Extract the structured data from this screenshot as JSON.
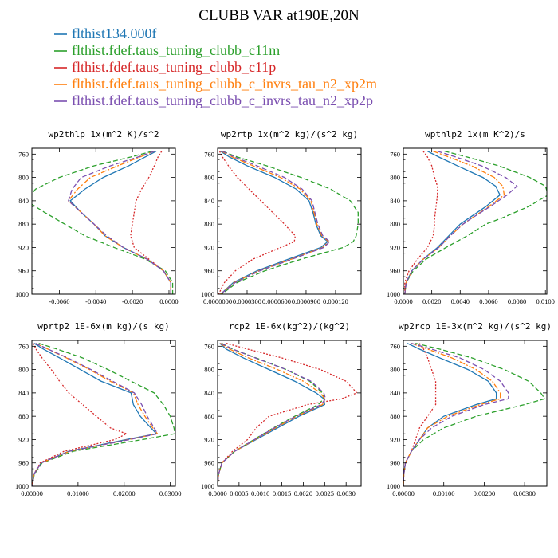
{
  "figure_title": "CLUBB VAR at190E,20N",
  "colors": {
    "ctrl": "#1f77b4",
    "c11m": "#2ca02c",
    "c11p": "#d62728",
    "xp2m": "#ff7f0e",
    "xp2p": "#7b4fb0"
  },
  "chart_data": [
    {
      "type": "line",
      "title": "wp2thlp  1x(m^2 K)/s^2",
      "xlim": [
        -0.0075,
        0.00035
      ],
      "ylim": [
        1000,
        750
      ],
      "xticks": [
        -0.006,
        -0.004,
        -0.002,
        0.0
      ],
      "xtick_labels": [
        "-0.0060",
        "-0.0040",
        "-0.0020",
        "0.0000"
      ],
      "yticks": [
        760,
        800,
        840,
        880,
        920,
        960,
        1000
      ],
      "y": [
        755,
        765,
        780,
        800,
        820,
        840,
        860,
        880,
        900,
        920,
        940,
        960,
        980,
        1000
      ],
      "series": [
        {
          "name": "flthist134.000f",
          "values": [
            -0.0007,
            -0.0013,
            -0.0022,
            -0.0036,
            -0.0046,
            -0.0054,
            -0.0048,
            -0.0041,
            -0.0035,
            -0.0025,
            -0.0012,
            -0.0003,
            0.0001,
            0.0001
          ]
        },
        {
          "name": "flthist.fdef.taus_tuning_clubb_c11m",
          "values": [
            -0.0009,
            -0.0021,
            -0.0041,
            -0.006,
            -0.0073,
            -0.0078,
            -0.0068,
            -0.0057,
            -0.0046,
            -0.003,
            -0.0013,
            -0.0002,
            0.0002,
            0.0002
          ]
        },
        {
          "name": "flthist.fdef.taus_tuning_clubb_c11p",
          "values": [
            -0.0004,
            -0.0006,
            -0.0008,
            -0.0011,
            -0.0015,
            -0.0018,
            -0.0019,
            -0.002,
            -0.0021,
            -0.0019,
            -0.0011,
            -0.0003,
            0.0001,
            0.0001
          ]
        },
        {
          "name": "flthist.fdef.taus_tuning_clubb_c_invrs_tau_n2_xp2m",
          "values": [
            -0.0008,
            -0.0016,
            -0.0028,
            -0.0043,
            -0.005,
            -0.0055,
            -0.0048,
            -0.0041,
            -0.0035,
            -0.0025,
            -0.0012,
            -0.0003,
            0.0001,
            0.0001
          ]
        },
        {
          "name": "flthist.fdef.taus_tuning_clubb_c_invrs_tau_n2_xp2p",
          "values": [
            -0.0008,
            -0.0017,
            -0.0032,
            -0.0048,
            -0.0053,
            -0.0055,
            -0.0048,
            -0.0041,
            -0.0034,
            -0.0025,
            -0.0012,
            -0.0003,
            0.0001,
            0.0001
          ]
        }
      ]
    },
    {
      "type": "line",
      "title": "wp2rtp  1x(m^2 kg)/(s^2 kg)",
      "xlim": [
        0.0,
        0.000146
      ],
      "ylim": [
        1000,
        750
      ],
      "xticks": [
        0.0,
        3e-05,
        6e-05,
        9e-05,
        0.00012
      ],
      "xtick_labels": [
        "0.0000000",
        "0.0000300",
        "0.0000600",
        "0.0000900",
        "0.000120"
      ],
      "yticks": [
        760,
        800,
        840,
        880,
        920,
        960,
        1000
      ],
      "y": [
        755,
        765,
        780,
        800,
        820,
        840,
        860,
        880,
        900,
        910,
        920,
        940,
        960,
        980,
        1000
      ],
      "series": [
        {
          "name": "flthist134.000f",
          "values": [
            3e-06,
            1.2e-05,
            3e-05,
            5.8e-05,
            8e-05,
            9.3e-05,
            9.7e-05,
            0.0001,
            0.000105,
            0.000112,
            0.000105,
            7.2e-05,
            4e-05,
            1.6e-05,
            3e-06
          ]
        },
        {
          "name": "flthist.fdef.taus_tuning_clubb_c11m",
          "values": [
            5e-06,
            2e-05,
            5e-05,
            8.5e-05,
            0.000115,
            0.000135,
            0.000143,
            0.000143,
            0.000141,
            0.000138,
            0.000128,
            8.5e-05,
            4.8e-05,
            2e-05,
            4e-06
          ]
        },
        {
          "name": "flthist.fdef.taus_tuning_clubb_c11p",
          "values": [
            2e-06,
            5e-06,
            1.1e-05,
            2e-05,
            3.2e-05,
            4.4e-05,
            5.6e-05,
            6.8e-05,
            7.9e-05,
            7.8e-05,
            6.4e-05,
            3.6e-05,
            1.8e-05,
            7e-06,
            1e-06
          ]
        },
        {
          "name": "flthist.fdef.taus_tuning_clubb_c_invrs_tau_n2_xp2m",
          "values": [
            4e-06,
            1.5e-05,
            3.6e-05,
            6.4e-05,
            8.4e-05,
            9.5e-05,
            9.8e-05,
            0.000101,
            0.000106,
            0.000113,
            0.000107,
            7.5e-05,
            4.2e-05,
            1.7e-05,
            3e-06
          ]
        },
        {
          "name": "flthist.fdef.taus_tuning_clubb_c_invrs_tau_n2_xp2p",
          "values": [
            5e-06,
            1.7e-05,
            4e-05,
            6.8e-05,
            8.6e-05,
            9.6e-05,
            9.9e-05,
            0.000102,
            0.000107,
            0.000114,
            0.000108,
            7.6e-05,
            4.3e-05,
            1.8e-05,
            3e-06
          ]
        }
      ]
    },
    {
      "type": "line",
      "title": "wpthlp2  1x(m K^2)/s",
      "xlim": [
        0.0,
        0.0101
      ],
      "ylim": [
        1000,
        750
      ],
      "xticks": [
        0.0,
        0.002,
        0.004,
        0.006,
        0.008,
        0.01
      ],
      "xtick_labels": [
        "0.0000",
        "0.0020",
        "0.0040",
        "0.0060",
        "0.0080",
        "0.0100"
      ],
      "yticks": [
        760,
        800,
        840,
        880,
        920,
        960,
        1000
      ],
      "y": [
        755,
        765,
        780,
        800,
        815,
        830,
        850,
        870,
        880,
        900,
        920,
        940,
        960,
        980,
        1000
      ],
      "series": [
        {
          "name": "flthist134.000f",
          "values": [
            0.0017,
            0.0025,
            0.0038,
            0.0056,
            0.0065,
            0.0068,
            0.0058,
            0.0046,
            0.004,
            0.0032,
            0.0024,
            0.0014,
            0.0006,
            0.0002,
            0.0001
          ]
        },
        {
          "name": "flthist.fdef.taus_tuning_clubb_c11m",
          "values": [
            0.0029,
            0.0045,
            0.0067,
            0.0089,
            0.01,
            0.0102,
            0.0088,
            0.0069,
            0.0058,
            0.0045,
            0.003,
            0.0016,
            0.0007,
            0.0002,
            0.0001
          ]
        },
        {
          "name": "flthist.fdef.taus_tuning_clubb_c11p",
          "values": [
            0.0014,
            0.0017,
            0.002,
            0.0022,
            0.0024,
            0.0024,
            0.0023,
            0.0022,
            0.0022,
            0.0021,
            0.0017,
            0.001,
            0.0004,
            0.0001,
            0.0001
          ]
        },
        {
          "name": "flthist.fdef.taus_tuning_clubb_c_invrs_tau_n2_xp2m",
          "values": [
            0.0021,
            0.0032,
            0.0048,
            0.0064,
            0.007,
            0.0071,
            0.006,
            0.0048,
            0.0042,
            0.0033,
            0.0025,
            0.0014,
            0.0006,
            0.0002,
            0.0001
          ]
        },
        {
          "name": "flthist.fdef.taus_tuning_clubb_c_invrs_tau_n2_xp2p",
          "values": [
            0.0024,
            0.0037,
            0.0055,
            0.0072,
            0.008,
            0.0073,
            0.0061,
            0.0048,
            0.0042,
            0.0033,
            0.0025,
            0.0014,
            0.0006,
            0.0002,
            0.0001
          ]
        }
      ]
    },
    {
      "type": "line",
      "title": "wprtp2  1E-6x(m kg)/(s kg)",
      "xlim": [
        0.0,
        0.0311
      ],
      "ylim": [
        1000,
        750
      ],
      "xticks": [
        0.0,
        0.01,
        0.02,
        0.03
      ],
      "xtick_labels": [
        "0.00000",
        "0.01000",
        "0.02000",
        "0.03000"
      ],
      "yticks": [
        760,
        800,
        840,
        880,
        920,
        960,
        1000
      ],
      "y": [
        755,
        765,
        780,
        800,
        820,
        840,
        860,
        880,
        900,
        910,
        920,
        940,
        960,
        980,
        1000
      ],
      "series": [
        {
          "name": "flthist134.000f",
          "values": [
            0.0005,
            0.0025,
            0.006,
            0.0105,
            0.015,
            0.0215,
            0.022,
            0.0235,
            0.0258,
            0.027,
            0.0205,
            0.008,
            0.002,
            0.0004,
            0.0001
          ]
        },
        {
          "name": "flthist.fdef.taus_tuning_clubb_c11m",
          "values": [
            0.0015,
            0.0055,
            0.011,
            0.0165,
            0.0215,
            0.0265,
            0.0285,
            0.03,
            0.0308,
            0.031,
            0.024,
            0.009,
            0.0022,
            0.0005,
            0.0001
          ]
        },
        {
          "name": "flthist.fdef.taus_tuning_clubb_c11p",
          "values": [
            0.0003,
            0.0009,
            0.0022,
            0.0042,
            0.006,
            0.008,
            0.011,
            0.014,
            0.017,
            0.0205,
            0.018,
            0.007,
            0.0018,
            0.0004,
            0.0001
          ]
        },
        {
          "name": "flthist.fdef.taus_tuning_clubb_c_invrs_tau_n2_xp2m",
          "values": [
            0.0008,
            0.0035,
            0.0075,
            0.0125,
            0.017,
            0.022,
            0.023,
            0.0245,
            0.0262,
            0.0272,
            0.021,
            0.0082,
            0.002,
            0.0004,
            0.0001
          ]
        },
        {
          "name": "flthist.fdef.taus_tuning_clubb_c_invrs_tau_n2_xp2p",
          "values": [
            0.0008,
            0.0035,
            0.0078,
            0.0128,
            0.0175,
            0.0222,
            0.0238,
            0.025,
            0.0265,
            0.0272,
            0.0212,
            0.0082,
            0.002,
            0.0004,
            0.0001
          ]
        }
      ]
    },
    {
      "type": "line",
      "title": "rcp2  1E-6x(kg^2)/(kg^2)",
      "xlim": [
        0.0,
        0.00335
      ],
      "ylim": [
        1000,
        750
      ],
      "xticks": [
        0.0,
        0.0005,
        0.001,
        0.0015,
        0.002,
        0.0025,
        0.003
      ],
      "xtick_labels": [
        "0.0000",
        "0.0005",
        "0.0010",
        "0.0015",
        "0.0020",
        "0.0025",
        "0.0030"
      ],
      "yticks": [
        760,
        800,
        840,
        880,
        920,
        960,
        1000
      ],
      "y": [
        755,
        765,
        780,
        800,
        820,
        840,
        850,
        860,
        880,
        900,
        920,
        940,
        960,
        980,
        1000
      ],
      "series": [
        {
          "name": "flthist134.000f",
          "values": [
            5e-05,
            0.0002,
            0.0006,
            0.0012,
            0.0018,
            0.0023,
            0.00248,
            0.0025,
            0.0019,
            0.0014,
            0.0009,
            0.0004,
            0.0001,
            2e-05,
            0.0
          ],
          "note": ""
        },
        {
          "name": "flthist.fdef.taus_tuning_clubb_c11m",
          "values": [
            0.0001,
            0.00035,
            0.0009,
            0.0016,
            0.00215,
            0.00245,
            0.00248,
            0.00235,
            0.0018,
            0.0013,
            0.00085,
            0.0004,
            0.0001,
            2e-05,
            0.0
          ]
        },
        {
          "name": "flthist.fdef.taus_tuning_clubb_c11p",
          "values": [
            0.0002,
            0.0007,
            0.0015,
            0.0024,
            0.003,
            0.00325,
            0.0029,
            0.0021,
            0.0012,
            0.0009,
            0.0007,
            0.00035,
            0.0001,
            2e-05,
            0.0
          ]
        },
        {
          "name": "flthist.fdef.taus_tuning_clubb_c_invrs_tau_n2_xp2m",
          "values": [
            6e-05,
            0.00028,
            0.00072,
            0.0014,
            0.002,
            0.0024,
            0.0025,
            0.00245,
            0.00185,
            0.00135,
            0.00088,
            0.0004,
            0.0001,
            2e-05,
            0.0
          ]
        },
        {
          "name": "flthist.fdef.taus_tuning_clubb_c_invrs_tau_n2_xp2p",
          "values": [
            8e-05,
            0.00035,
            0.00088,
            0.0016,
            0.00218,
            0.00248,
            0.00252,
            0.00242,
            0.00182,
            0.00132,
            0.00086,
            0.0004,
            0.0001,
            2e-05,
            0.0
          ]
        }
      ]
    },
    {
      "type": "line",
      "title": "wp2rcp  1E-3x(m^2 kg)/(s^2 kg)",
      "xlim": [
        0.0,
        0.00355
      ],
      "ylim": [
        1000,
        750
      ],
      "xticks": [
        0.0,
        0.001,
        0.002,
        0.003
      ],
      "xtick_labels": [
        "0.00000",
        "0.00100",
        "0.00200",
        "0.00300"
      ],
      "yticks": [
        760,
        800,
        840,
        880,
        920,
        960,
        1000
      ],
      "y": [
        755,
        765,
        780,
        800,
        820,
        840,
        850,
        860,
        880,
        900,
        920,
        940,
        960,
        980,
        1000
      ],
      "series": [
        {
          "name": "flthist134.000f",
          "values": [
            0.0001,
            0.0004,
            0.0009,
            0.0016,
            0.0021,
            0.0023,
            0.0023,
            0.0018,
            0.001,
            0.0006,
            0.0004,
            0.0002,
            5e-05,
            1e-05,
            0.0
          ]
        },
        {
          "name": "flthist.fdef.taus_tuning_clubb_c11m",
          "values": [
            0.0003,
            0.0009,
            0.0017,
            0.0025,
            0.0031,
            0.0034,
            0.0035,
            0.003,
            0.0018,
            0.001,
            0.0005,
            0.0002,
            5e-05,
            1e-05,
            0.0
          ]
        },
        {
          "name": "flthist.fdef.taus_tuning_clubb_c11p",
          "values": [
            0.0004,
            0.0005,
            0.0006,
            0.0007,
            0.0008,
            0.0008,
            0.0008,
            0.0008,
            0.0006,
            0.0004,
            0.0003,
            0.0002,
            5e-05,
            1e-05,
            0.0
          ]
        },
        {
          "name": "flthist.fdef.taus_tuning_clubb_c_invrs_tau_n2_xp2m",
          "values": [
            0.0002,
            0.0006,
            0.0012,
            0.0018,
            0.0022,
            0.0024,
            0.0024,
            0.0019,
            0.0011,
            0.0006,
            0.0004,
            0.0002,
            5e-05,
            1e-05,
            0.0
          ]
        },
        {
          "name": "flthist.fdef.taus_tuning_clubb_c_invrs_tau_n2_xp2p",
          "values": [
            0.0002,
            0.0007,
            0.0014,
            0.002,
            0.0024,
            0.0026,
            0.0026,
            0.002,
            0.0012,
            0.0007,
            0.0004,
            0.0002,
            5e-05,
            1e-05,
            0.0
          ]
        }
      ]
    }
  ],
  "legend": [
    {
      "label": "flthist134.000f",
      "color_key": "ctrl",
      "dash": "solid"
    },
    {
      "label": "flthist.fdef.taus_tuning_clubb_c11m",
      "color_key": "c11m",
      "dash": "dash"
    },
    {
      "label": "flthist.fdef.taus_tuning_clubb_c11p",
      "color_key": "c11p",
      "dash": "dot"
    },
    {
      "label": "flthist.fdef.taus_tuning_clubb_c_invrs_tau_n2_xp2m",
      "color_key": "xp2m",
      "dash": "dashdot"
    },
    {
      "label": "flthist.fdef.taus_tuning_clubb_c_invrs_tau_n2_xp2p",
      "color_key": "xp2p",
      "dash": "dash"
    }
  ]
}
